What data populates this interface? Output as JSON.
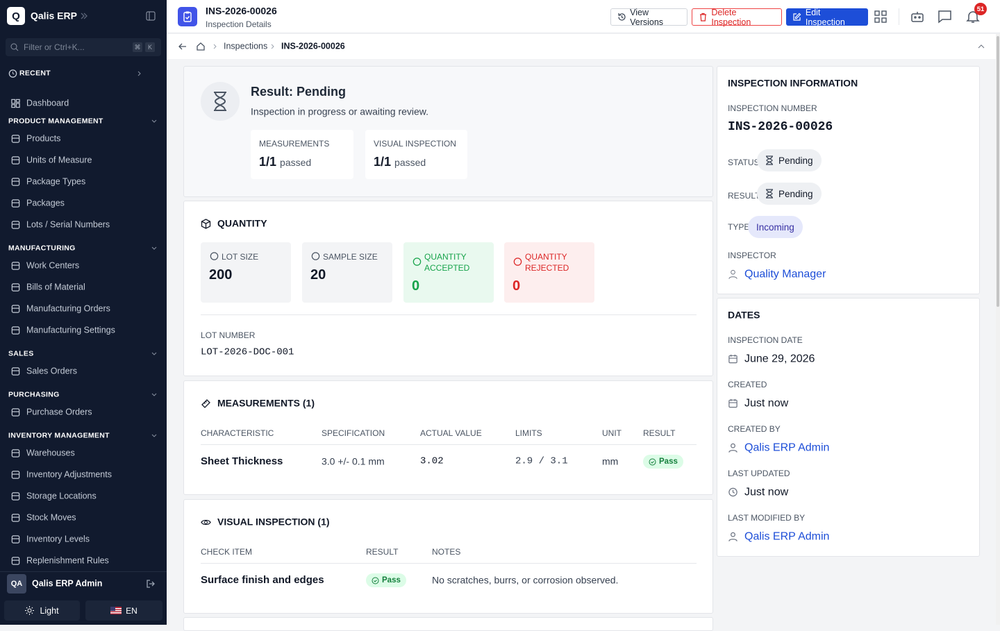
{
  "sidebar": {
    "logo": "Q",
    "brand": "Qalis ERP",
    "filter": "Filter or Ctrl+K...",
    "keys": [
      "⌘",
      "K"
    ],
    "recent": "RECENT",
    "dashboard": "Dashboard",
    "sections": [
      {
        "title": "PRODUCT MANAGEMENT",
        "items": [
          "Products",
          "Units of Measure",
          "Package Types",
          "Packages",
          "Lots / Serial Numbers"
        ]
      },
      {
        "title": "MANUFACTURING",
        "items": [
          "Work Centers",
          "Bills of Material",
          "Manufacturing Orders",
          "Manufacturing Settings"
        ]
      },
      {
        "title": "SALES",
        "items": [
          "Sales Orders"
        ]
      },
      {
        "title": "PURCHASING",
        "items": [
          "Purchase Orders"
        ]
      },
      {
        "title": "INVENTORY MANAGEMENT",
        "items": [
          "Warehouses",
          "Inventory Adjustments",
          "Storage Locations",
          "Stock Moves",
          "Inventory Levels",
          "Replenishment Rules"
        ]
      }
    ],
    "user": {
      "initials": "QA",
      "name": "Qalis ERP Admin"
    },
    "theme": "Light",
    "language": "EN"
  },
  "header": {
    "title": "INS-2026-00026",
    "subtitle": "Inspection Details",
    "view_versions": "View Versions",
    "delete": "Delete Inspection",
    "edit": "Edit Inspection",
    "notifications": 51
  },
  "breadcrumb": [
    "Inspections",
    "INS-2026-00026"
  ],
  "result": {
    "title": "Result: Pending",
    "description": "Inspection in progress or awaiting review.",
    "stats": [
      {
        "label": "MEASUREMENTS",
        "value": "1/1",
        "suffix": "passed"
      },
      {
        "label": "VISUAL INSPECTION",
        "value": "1/1",
        "suffix": "passed"
      }
    ]
  },
  "quantity": {
    "title": "QUANTITY",
    "cards": [
      {
        "label": "LOT SIZE",
        "value": 200
      },
      {
        "label": "SAMPLE SIZE",
        "value": 20
      },
      {
        "label": "QUANTITY ACCEPTED",
        "value": 0
      },
      {
        "label": "QUANTITY REJECTED",
        "value": 0
      }
    ],
    "lot_label": "LOT NUMBER",
    "lot_number": "LOT-2026-DOC-001"
  },
  "measurements": {
    "title": "MEASUREMENTS (1)",
    "columns": [
      "CHARACTERISTIC",
      "SPECIFICATION",
      "ACTUAL VALUE",
      "LIMITS",
      "UNIT",
      "RESULT"
    ],
    "rows": [
      [
        "Sheet Thickness",
        "3.0 +/- 0.1 mm",
        "3.02",
        "2.9 / 3.1",
        "mm",
        "Pass"
      ]
    ]
  },
  "visual": {
    "title": "VISUAL INSPECTION (1)",
    "columns": [
      "CHECK ITEM",
      "RESULT",
      "NOTES"
    ],
    "rows": [
      [
        "Surface finish and edges",
        "Pass",
        "No scratches, burrs, or corrosion observed."
      ]
    ]
  },
  "info": {
    "title": "INSPECTION INFORMATION",
    "number_label": "INSPECTION NUMBER",
    "number": "INS-2026-00026",
    "status_label": "STATUS",
    "status": "Pending",
    "result_label": "RESULT",
    "result": "Pending",
    "type_label": "TYPE",
    "type": "Incoming",
    "inspector_label": "INSPECTOR",
    "inspector": "Quality Manager"
  },
  "dates": {
    "title": "DATES",
    "fields": [
      {
        "label": "INSPECTION DATE",
        "value": "June 29, 2026"
      },
      {
        "label": "CREATED",
        "value": "Just now"
      },
      {
        "label": "CREATED BY",
        "value": "Qalis ERP Admin"
      },
      {
        "label": "LAST UPDATED",
        "value": "Just now"
      },
      {
        "label": "LAST MODIFIED BY",
        "value": "Qalis ERP Admin"
      }
    ]
  }
}
